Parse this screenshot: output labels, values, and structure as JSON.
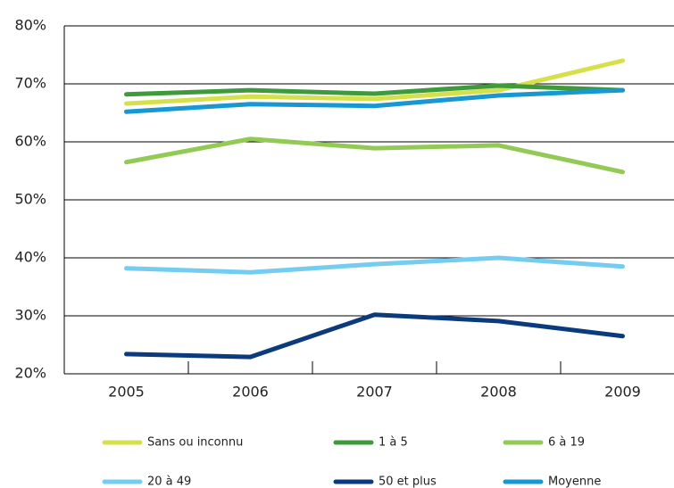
{
  "chart_data": {
    "type": "line",
    "categories": [
      "2005",
      "2006",
      "2007",
      "2008",
      "2009"
    ],
    "series": [
      {
        "name": "Sans ou inconnu",
        "color": "#d6e04a",
        "values": [
          66.6,
          67.8,
          67.4,
          68.9,
          74.0
        ]
      },
      {
        "name": "1 à 5",
        "color": "#3f9a3c",
        "values": [
          68.2,
          68.9,
          68.3,
          69.7,
          68.9
        ]
      },
      {
        "name": "6 à 19",
        "color": "#93c955",
        "values": [
          56.5,
          60.5,
          58.9,
          59.4,
          54.8
        ]
      },
      {
        "name": "20 à 49",
        "color": "#74cdf0",
        "values": [
          38.2,
          37.5,
          38.9,
          40.0,
          38.5
        ]
      },
      {
        "name": "50 et plus",
        "color": "#0b3b7c",
        "values": [
          23.4,
          22.9,
          30.2,
          29.1,
          26.5
        ]
      },
      {
        "name": "Moyenne",
        "color": "#1797d4",
        "values": [
          65.2,
          66.5,
          66.2,
          68.0,
          68.9
        ]
      }
    ],
    "ylim": [
      20,
      80
    ],
    "yticks": [
      {
        "value": 20,
        "label": "20%"
      },
      {
        "value": 30,
        "label": "30%"
      },
      {
        "value": 40,
        "label": "40%"
      },
      {
        "value": 50,
        "label": "50%"
      },
      {
        "value": 60,
        "label": "60%"
      },
      {
        "value": 70,
        "label": "70%"
      },
      {
        "value": 80,
        "label": "80%"
      }
    ],
    "grid": true
  }
}
